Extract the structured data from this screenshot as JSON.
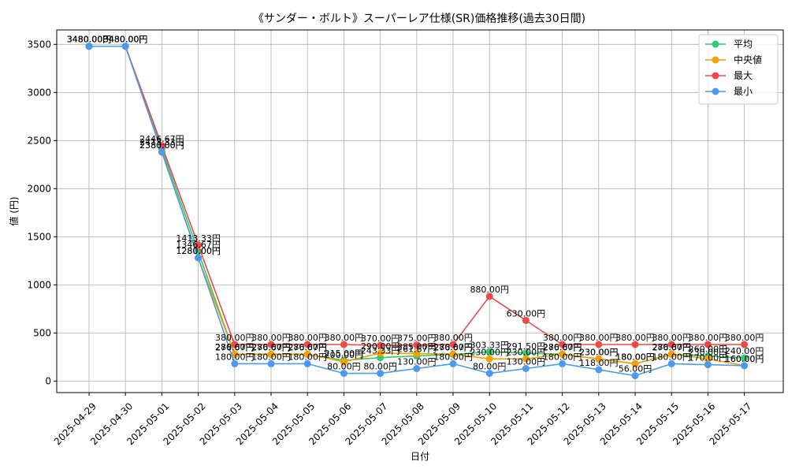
{
  "chart_data": {
    "type": "line",
    "title": "《サンダー・ボルト》スーパーレア仕様(SR)価格推移(過去30日間)",
    "xlabel": "日付",
    "ylabel": "値 (円)",
    "ylim": [
      -120,
      3650
    ],
    "yticks": [
      0,
      500,
      1000,
      1500,
      2000,
      2500,
      3000,
      3500
    ],
    "grid": true,
    "legend_position": "top-right",
    "label_suffix": "円",
    "categories": [
      "2025-04-29",
      "2025-04-30",
      "2025-05-01",
      "2025-05-02",
      "2025-05-03",
      "2025-05-04",
      "2025-05-05",
      "2025-05-06",
      "2025-05-07",
      "2025-05-08",
      "2025-05-09",
      "2025-05-10",
      "2025-05-11",
      "2025-05-12",
      "2025-05-13",
      "2025-05-14",
      "2025-05-15",
      "2025-05-16",
      "2025-05-17"
    ],
    "series": [
      {
        "name": "平均",
        "color": "#2ecc71",
        "values": [
          3480,
          3480,
          2413.33,
          1346.67,
          276.67,
          276.67,
          276.67,
          215,
          243.33,
          261.67,
          276.67,
          303.33,
          291.5,
          276.67,
          230,
          180,
          276.67,
          260,
          240
        ]
      },
      {
        "name": "中央値",
        "color": "#f5a000",
        "values": [
          3480,
          3480,
          2380,
          1280,
          280,
          280,
          280,
          200,
          290,
          285,
          280,
          230,
          230,
          280,
          230,
          180,
          280,
          230,
          160
        ]
      },
      {
        "name": "最大",
        "color": "#f04848",
        "values": [
          3480,
          3480,
          2446.67,
          1413.33,
          380,
          380,
          380,
          380,
          370,
          375,
          380,
          880,
          630,
          380,
          380,
          380,
          380,
          380,
          380
        ]
      },
      {
        "name": "最小",
        "color": "#4a9af0",
        "values": [
          3480,
          3480,
          2380,
          1280,
          180,
          180,
          180,
          80,
          80,
          130,
          180,
          80,
          130,
          180,
          118,
          56,
          180,
          170,
          160
        ]
      }
    ]
  }
}
